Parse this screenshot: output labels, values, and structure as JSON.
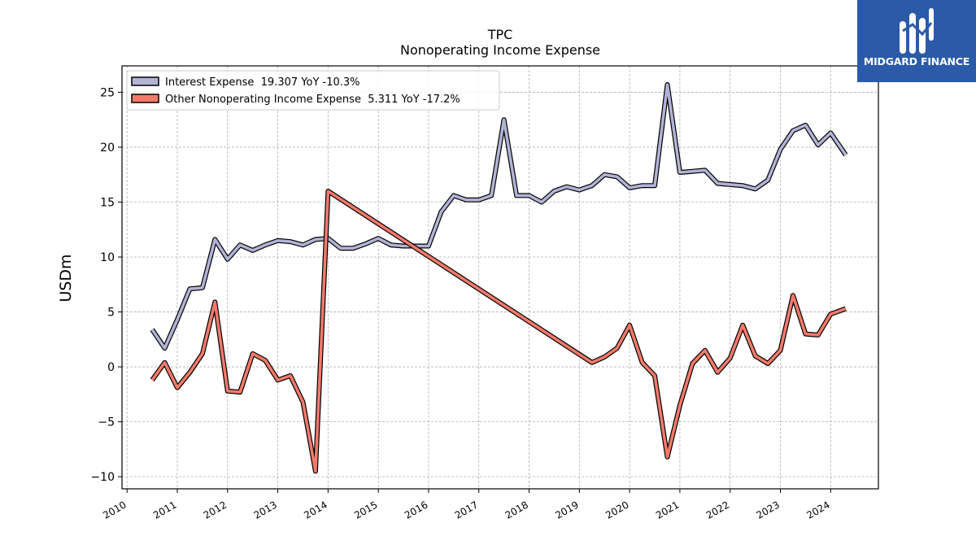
{
  "brand": {
    "name": "MIDGARD FINANCE",
    "logo_icon": "midgard-logo-icon",
    "color": "#2b5aa8"
  },
  "chart_data": {
    "type": "line",
    "title": "TPC",
    "subtitle": "Nonoperating Income Expense",
    "ylabel": "USDm",
    "xlabel": "",
    "xlim": [
      2009.9,
      2024.95
    ],
    "ylim": [
      -11.1,
      27.4
    ],
    "yticks": [
      -10,
      -5,
      0,
      5,
      10,
      15,
      20,
      25
    ],
    "xticks": [
      "2010",
      "2011",
      "2012",
      "2013",
      "2014",
      "2015",
      "2016",
      "2017",
      "2018",
      "2019",
      "2020",
      "2021",
      "2022",
      "2023",
      "2024"
    ],
    "grid": true,
    "legend_position": "top-left",
    "series": [
      {
        "name": "Interest Expense",
        "legend_label": "Interest Expense  19.307 YoY -10.3%",
        "color": "#b3b3d6",
        "points": [
          [
            2010.5,
            3.4
          ],
          [
            2010.75,
            1.7
          ],
          [
            2011.0,
            4.3
          ],
          [
            2011.25,
            7.1
          ],
          [
            2011.5,
            7.2
          ],
          [
            2011.75,
            11.6
          ],
          [
            2012.0,
            9.8
          ],
          [
            2012.25,
            11.1
          ],
          [
            2012.5,
            10.6
          ],
          [
            2012.75,
            11.1
          ],
          [
            2013.0,
            11.5
          ],
          [
            2013.25,
            11.4
          ],
          [
            2013.5,
            11.1
          ],
          [
            2013.75,
            11.6
          ],
          [
            2014.0,
            11.7
          ],
          [
            2014.25,
            10.8
          ],
          [
            2014.5,
            10.8
          ],
          [
            2014.75,
            11.2
          ],
          [
            2015.0,
            11.7
          ],
          [
            2015.25,
            11.1
          ],
          [
            2015.5,
            11.0
          ],
          [
            2015.75,
            11.0
          ],
          [
            2016.0,
            11.0
          ],
          [
            2016.25,
            14.1
          ],
          [
            2016.5,
            15.6
          ],
          [
            2016.75,
            15.2
          ],
          [
            2017.0,
            15.2
          ],
          [
            2017.25,
            15.6
          ],
          [
            2017.5,
            22.5
          ],
          [
            2017.75,
            15.6
          ],
          [
            2018.0,
            15.6
          ],
          [
            2018.25,
            15.0
          ],
          [
            2018.5,
            16.0
          ],
          [
            2018.75,
            16.4
          ],
          [
            2019.0,
            16.1
          ],
          [
            2019.25,
            16.5
          ],
          [
            2019.5,
            17.5
          ],
          [
            2019.75,
            17.3
          ],
          [
            2020.0,
            16.3
          ],
          [
            2020.25,
            16.5
          ],
          [
            2020.5,
            16.5
          ],
          [
            2020.75,
            25.7
          ],
          [
            2021.0,
            17.7
          ],
          [
            2021.25,
            17.8
          ],
          [
            2021.5,
            17.9
          ],
          [
            2021.75,
            16.7
          ],
          [
            2022.0,
            16.6
          ],
          [
            2022.25,
            16.5
          ],
          [
            2022.5,
            16.2
          ],
          [
            2022.75,
            17.0
          ],
          [
            2023.0,
            19.8
          ],
          [
            2023.25,
            21.5
          ],
          [
            2023.5,
            22.0
          ],
          [
            2023.75,
            20.2
          ],
          [
            2024.0,
            21.3
          ],
          [
            2024.3,
            19.3
          ]
        ]
      },
      {
        "name": "Other Nonoperating Income Expense",
        "legend_label": "Other Nonoperating Income Expense  5.311 YoY -17.2%",
        "color": "#f47a6b",
        "points": [
          [
            2010.5,
            -1.2
          ],
          [
            2010.75,
            0.4
          ],
          [
            2011.0,
            -1.9
          ],
          [
            2011.25,
            -0.5
          ],
          [
            2011.5,
            1.2
          ],
          [
            2011.75,
            5.9
          ],
          [
            2012.0,
            -2.2
          ],
          [
            2012.25,
            -2.3
          ],
          [
            2012.5,
            1.2
          ],
          [
            2012.75,
            0.6
          ],
          [
            2013.0,
            -1.2
          ],
          [
            2013.25,
            -0.8
          ],
          [
            2013.5,
            -3.2
          ],
          [
            2013.75,
            -9.5
          ],
          [
            2014.0,
            16.0
          ],
          [
            2019.25,
            0.4
          ],
          [
            2019.5,
            0.9
          ],
          [
            2019.75,
            1.7
          ],
          [
            2020.0,
            3.8
          ],
          [
            2020.25,
            0.4
          ],
          [
            2020.5,
            -0.8
          ],
          [
            2020.75,
            -8.2
          ],
          [
            2021.0,
            -3.5
          ],
          [
            2021.25,
            0.3
          ],
          [
            2021.5,
            1.5
          ],
          [
            2021.75,
            -0.5
          ],
          [
            2022.0,
            0.8
          ],
          [
            2022.25,
            3.8
          ],
          [
            2022.5,
            1.0
          ],
          [
            2022.75,
            0.3
          ],
          [
            2023.0,
            1.5
          ],
          [
            2023.25,
            6.5
          ],
          [
            2023.5,
            3.0
          ],
          [
            2023.75,
            2.9
          ],
          [
            2024.0,
            4.8
          ],
          [
            2024.3,
            5.3
          ]
        ]
      }
    ]
  }
}
